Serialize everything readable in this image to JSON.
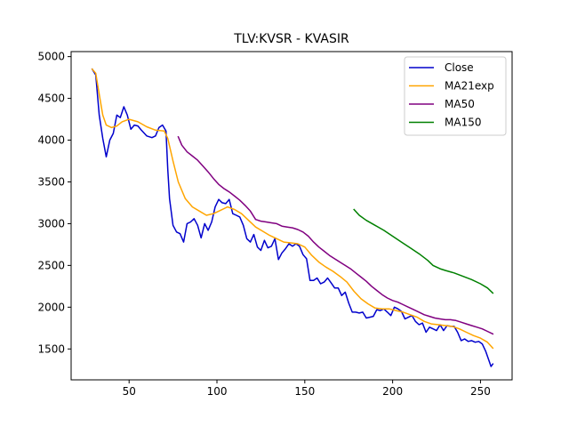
{
  "chart_data": {
    "type": "line",
    "title": "TLV:KVSR - KVASIR",
    "xlabel": "",
    "ylabel": "",
    "xlim": [
      17,
      268
    ],
    "ylim": [
      1130,
      5060
    ],
    "xticks": [
      50,
      100,
      150,
      200,
      250
    ],
    "yticks": [
      1500,
      2000,
      2500,
      3000,
      3500,
      4000,
      4500,
      5000
    ],
    "legend_position": "top-right",
    "series": [
      {
        "name": "Close",
        "color": "#0000cc",
        "points": [
          [
            29,
            4850
          ],
          [
            31,
            4780
          ],
          [
            33,
            4300
          ],
          [
            35,
            4020
          ],
          [
            37,
            3800
          ],
          [
            39,
            4000
          ],
          [
            41,
            4080
          ],
          [
            43,
            4300
          ],
          [
            45,
            4270
          ],
          [
            47,
            4400
          ],
          [
            49,
            4300
          ],
          [
            51,
            4130
          ],
          [
            53,
            4180
          ],
          [
            55,
            4170
          ],
          [
            57,
            4120
          ],
          [
            60,
            4050
          ],
          [
            63,
            4030
          ],
          [
            65,
            4050
          ],
          [
            67,
            4150
          ],
          [
            69,
            4180
          ],
          [
            71,
            4110
          ],
          [
            72,
            3650
          ],
          [
            73,
            3300
          ],
          [
            75,
            2980
          ],
          [
            77,
            2900
          ],
          [
            79,
            2880
          ],
          [
            81,
            2780
          ],
          [
            83,
            3000
          ],
          [
            85,
            3020
          ],
          [
            87,
            3060
          ],
          [
            89,
            2980
          ],
          [
            91,
            2830
          ],
          [
            93,
            3000
          ],
          [
            95,
            2920
          ],
          [
            97,
            3020
          ],
          [
            99,
            3200
          ],
          [
            101,
            3290
          ],
          [
            103,
            3250
          ],
          [
            105,
            3240
          ],
          [
            107,
            3290
          ],
          [
            109,
            3120
          ],
          [
            111,
            3100
          ],
          [
            113,
            3080
          ],
          [
            115,
            2980
          ],
          [
            117,
            2820
          ],
          [
            119,
            2780
          ],
          [
            121,
            2870
          ],
          [
            123,
            2720
          ],
          [
            125,
            2680
          ],
          [
            127,
            2800
          ],
          [
            129,
            2710
          ],
          [
            131,
            2730
          ],
          [
            133,
            2820
          ],
          [
            135,
            2570
          ],
          [
            137,
            2650
          ],
          [
            139,
            2700
          ],
          [
            141,
            2760
          ],
          [
            143,
            2730
          ],
          [
            145,
            2760
          ],
          [
            147,
            2730
          ],
          [
            149,
            2630
          ],
          [
            151,
            2580
          ],
          [
            153,
            2320
          ],
          [
            155,
            2320
          ],
          [
            157,
            2350
          ],
          [
            159,
            2280
          ],
          [
            161,
            2300
          ],
          [
            163,
            2350
          ],
          [
            165,
            2290
          ],
          [
            167,
            2230
          ],
          [
            169,
            2230
          ],
          [
            171,
            2140
          ],
          [
            173,
            2180
          ],
          [
            175,
            2050
          ],
          [
            177,
            1940
          ],
          [
            179,
            1940
          ],
          [
            181,
            1930
          ],
          [
            183,
            1940
          ],
          [
            185,
            1870
          ],
          [
            187,
            1880
          ],
          [
            189,
            1890
          ],
          [
            191,
            1970
          ],
          [
            193,
            1960
          ],
          [
            195,
            1980
          ],
          [
            197,
            1940
          ],
          [
            199,
            1900
          ],
          [
            201,
            2000
          ],
          [
            203,
            1980
          ],
          [
            205,
            1950
          ],
          [
            207,
            1860
          ],
          [
            209,
            1880
          ],
          [
            211,
            1900
          ],
          [
            213,
            1830
          ],
          [
            215,
            1790
          ],
          [
            217,
            1810
          ],
          [
            219,
            1700
          ],
          [
            221,
            1760
          ],
          [
            223,
            1740
          ],
          [
            225,
            1720
          ],
          [
            227,
            1790
          ],
          [
            229,
            1720
          ],
          [
            231,
            1780
          ],
          [
            233,
            1770
          ],
          [
            235,
            1770
          ],
          [
            237,
            1700
          ],
          [
            239,
            1600
          ],
          [
            241,
            1620
          ],
          [
            243,
            1590
          ],
          [
            245,
            1600
          ],
          [
            247,
            1580
          ],
          [
            249,
            1590
          ],
          [
            251,
            1560
          ],
          [
            253,
            1470
          ],
          [
            255,
            1350
          ],
          [
            256,
            1290
          ],
          [
            257,
            1320
          ]
        ]
      },
      {
        "name": "MA21exp",
        "color": "#ffa500",
        "points": [
          [
            29,
            4850
          ],
          [
            31,
            4800
          ],
          [
            33,
            4550
          ],
          [
            35,
            4300
          ],
          [
            37,
            4180
          ],
          [
            40,
            4150
          ],
          [
            43,
            4170
          ],
          [
            46,
            4220
          ],
          [
            50,
            4250
          ],
          [
            55,
            4220
          ],
          [
            60,
            4160
          ],
          [
            65,
            4120
          ],
          [
            70,
            4110
          ],
          [
            72,
            4020
          ],
          [
            75,
            3750
          ],
          [
            78,
            3500
          ],
          [
            82,
            3300
          ],
          [
            86,
            3200
          ],
          [
            90,
            3150
          ],
          [
            94,
            3100
          ],
          [
            98,
            3120
          ],
          [
            102,
            3160
          ],
          [
            106,
            3200
          ],
          [
            110,
            3170
          ],
          [
            114,
            3120
          ],
          [
            118,
            3040
          ],
          [
            122,
            2960
          ],
          [
            126,
            2910
          ],
          [
            130,
            2860
          ],
          [
            134,
            2820
          ],
          [
            138,
            2780
          ],
          [
            142,
            2770
          ],
          [
            146,
            2760
          ],
          [
            150,
            2720
          ],
          [
            154,
            2620
          ],
          [
            158,
            2540
          ],
          [
            162,
            2480
          ],
          [
            166,
            2430
          ],
          [
            170,
            2370
          ],
          [
            174,
            2300
          ],
          [
            178,
            2190
          ],
          [
            182,
            2100
          ],
          [
            186,
            2040
          ],
          [
            190,
            1990
          ],
          [
            194,
            1980
          ],
          [
            198,
            1980
          ],
          [
            202,
            1960
          ],
          [
            206,
            1940
          ],
          [
            210,
            1910
          ],
          [
            214,
            1880
          ],
          [
            218,
            1830
          ],
          [
            222,
            1800
          ],
          [
            226,
            1790
          ],
          [
            230,
            1780
          ],
          [
            234,
            1770
          ],
          [
            238,
            1740
          ],
          [
            242,
            1700
          ],
          [
            246,
            1660
          ],
          [
            250,
            1630
          ],
          [
            254,
            1580
          ],
          [
            257,
            1510
          ]
        ]
      },
      {
        "name": "MA50",
        "color": "#800080",
        "points": [
          [
            78,
            4040
          ],
          [
            80,
            3940
          ],
          [
            83,
            3860
          ],
          [
            86,
            3810
          ],
          [
            89,
            3760
          ],
          [
            92,
            3690
          ],
          [
            95,
            3620
          ],
          [
            98,
            3540
          ],
          [
            101,
            3470
          ],
          [
            104,
            3420
          ],
          [
            107,
            3380
          ],
          [
            110,
            3330
          ],
          [
            113,
            3280
          ],
          [
            116,
            3220
          ],
          [
            119,
            3150
          ],
          [
            122,
            3050
          ],
          [
            125,
            3030
          ],
          [
            128,
            3020
          ],
          [
            131,
            3010
          ],
          [
            134,
            3000
          ],
          [
            137,
            2970
          ],
          [
            140,
            2960
          ],
          [
            143,
            2950
          ],
          [
            146,
            2930
          ],
          [
            149,
            2900
          ],
          [
            152,
            2850
          ],
          [
            155,
            2780
          ],
          [
            158,
            2720
          ],
          [
            161,
            2670
          ],
          [
            164,
            2620
          ],
          [
            167,
            2580
          ],
          [
            170,
            2540
          ],
          [
            173,
            2500
          ],
          [
            176,
            2460
          ],
          [
            179,
            2410
          ],
          [
            182,
            2360
          ],
          [
            185,
            2310
          ],
          [
            188,
            2250
          ],
          [
            191,
            2200
          ],
          [
            194,
            2150
          ],
          [
            197,
            2110
          ],
          [
            200,
            2080
          ],
          [
            203,
            2060
          ],
          [
            206,
            2030
          ],
          [
            209,
            2000
          ],
          [
            212,
            1970
          ],
          [
            215,
            1940
          ],
          [
            218,
            1910
          ],
          [
            221,
            1890
          ],
          [
            224,
            1870
          ],
          [
            227,
            1860
          ],
          [
            230,
            1850
          ],
          [
            233,
            1850
          ],
          [
            236,
            1840
          ],
          [
            239,
            1820
          ],
          [
            242,
            1800
          ],
          [
            245,
            1780
          ],
          [
            248,
            1760
          ],
          [
            251,
            1740
          ],
          [
            254,
            1710
          ],
          [
            257,
            1680
          ]
        ]
      },
      {
        "name": "MA150",
        "color": "#008000",
        "points": [
          [
            178,
            3170
          ],
          [
            181,
            3100
          ],
          [
            185,
            3040
          ],
          [
            190,
            2980
          ],
          [
            195,
            2920
          ],
          [
            200,
            2850
          ],
          [
            205,
            2780
          ],
          [
            210,
            2710
          ],
          [
            215,
            2640
          ],
          [
            220,
            2560
          ],
          [
            223,
            2500
          ],
          [
            227,
            2460
          ],
          [
            230,
            2440
          ],
          [
            235,
            2410
          ],
          [
            240,
            2370
          ],
          [
            245,
            2330
          ],
          [
            250,
            2280
          ],
          [
            254,
            2230
          ],
          [
            257,
            2170
          ]
        ]
      }
    ]
  }
}
